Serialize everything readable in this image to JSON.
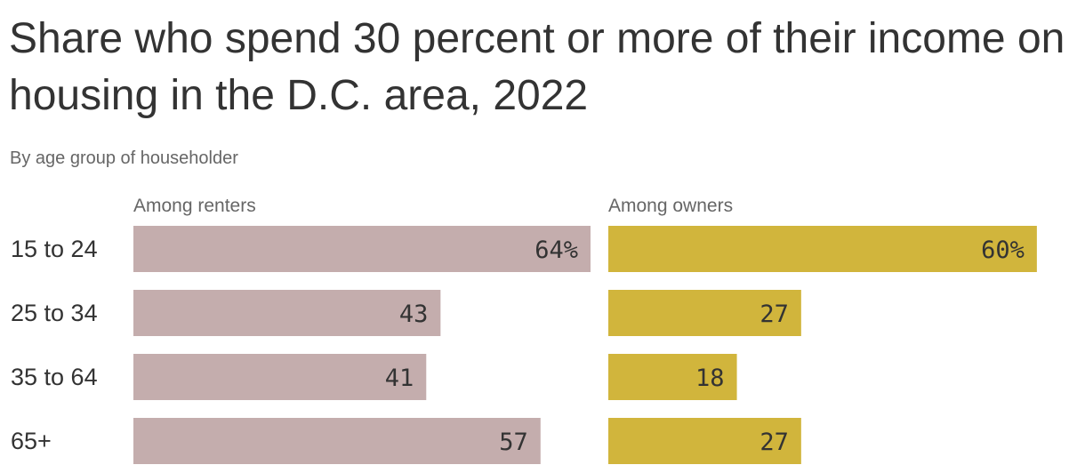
{
  "title": "Share who spend 30 percent or more of their income on housing in the D.C. area, 2022",
  "subtitle": "By age group of householder",
  "chart_data": {
    "type": "bar",
    "orientation": "horizontal",
    "categories": [
      "15 to 24",
      "25 to 34",
      "35 to 64",
      "65+"
    ],
    "series": [
      {
        "name": "Among renters",
        "values": [
          64,
          43,
          41,
          57
        ],
        "labels": [
          "64%",
          "43",
          "41",
          "57"
        ],
        "color": "#c4adad"
      },
      {
        "name": "Among owners",
        "values": [
          60,
          27,
          18,
          27
        ],
        "labels": [
          "60%",
          "27",
          "18",
          "27"
        ],
        "color": "#d1b53c"
      }
    ],
    "xlim": [
      0,
      64
    ],
    "grid": false,
    "legend": "none"
  }
}
